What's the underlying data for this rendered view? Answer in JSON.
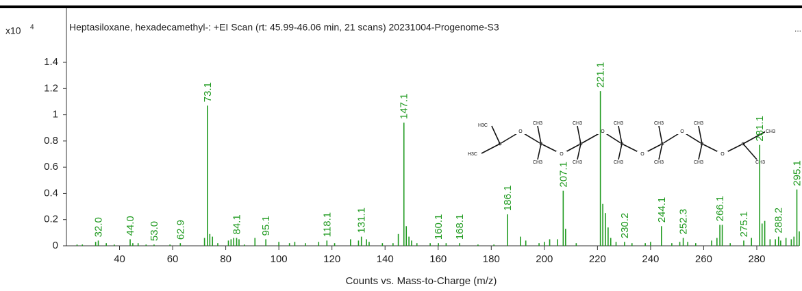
{
  "chart_data": {
    "type": "stem",
    "title": "Heptasiloxane, hexadecamethyl-: +EI Scan (rt: 45.99-46.06 min, 21 scans) 20231004-Progenome-S3",
    "x_label": "Counts vs. Mass-to-Charge (m/z)",
    "y_multiplier": "x10",
    "y_exponent": "4",
    "menu": "...",
    "color": "#1f9a1f",
    "xlim": [
      20,
      296
    ],
    "xticks": [
      40,
      60,
      80,
      100,
      120,
      140,
      160,
      180,
      200,
      220,
      240,
      260,
      280
    ],
    "ylim": [
      0,
      1.8
    ],
    "yticks": [
      0,
      0.2,
      0.4,
      0.6,
      0.8,
      1,
      1.2,
      1.4
    ],
    "x": [
      24,
      26,
      31,
      32,
      35,
      38,
      44,
      45,
      47,
      50,
      53,
      59,
      62.9,
      72,
      73.1,
      74,
      75,
      77,
      81,
      82,
      83,
      84.1,
      85,
      87,
      91,
      95.1,
      100,
      104,
      106,
      110,
      115,
      118.1,
      121,
      127,
      130,
      131.1,
      133,
      134,
      139,
      143,
      145,
      147.1,
      148,
      149,
      150,
      152,
      157,
      160.1,
      163,
      168.1,
      175,
      181,
      186.1,
      191,
      193,
      198,
      200,
      202,
      205,
      207.1,
      208,
      212,
      221.1,
      222,
      223,
      224,
      225,
      227,
      230.2,
      233,
      238,
      240,
      244.1,
      248,
      251,
      252.3,
      254,
      257,
      263,
      265,
      266.1,
      267,
      270,
      275.1,
      278,
      281.1,
      282,
      283,
      285,
      287,
      288.2,
      289,
      291,
      293,
      294,
      295.1,
      296
    ],
    "values": [
      0.01,
      0.01,
      0.03,
      0.04,
      0.02,
      0.01,
      0.05,
      0.02,
      0.02,
      0.01,
      0.01,
      0.01,
      0.02,
      0.06,
      1.07,
      0.09,
      0.07,
      0.02,
      0.04,
      0.05,
      0.06,
      0.06,
      0.05,
      0.01,
      0.06,
      0.05,
      0.03,
      0.02,
      0.03,
      0.02,
      0.03,
      0.04,
      0.02,
      0.05,
      0.04,
      0.07,
      0.05,
      0.03,
      0.02,
      0.02,
      0.09,
      0.94,
      0.15,
      0.07,
      0.04,
      0.02,
      0.02,
      0.02,
      0.02,
      0.02,
      0.01,
      0.01,
      0.24,
      0.07,
      0.04,
      0.02,
      0.03,
      0.05,
      0.05,
      0.42,
      0.13,
      0.02,
      1.18,
      0.32,
      0.25,
      0.14,
      0.06,
      0.03,
      0.03,
      0.02,
      0.02,
      0.03,
      0.15,
      0.02,
      0.03,
      0.06,
      0.03,
      0.02,
      0.04,
      0.06,
      0.16,
      0.16,
      0.02,
      0.04,
      0.06,
      0.77,
      0.17,
      0.19,
      0.05,
      0.05,
      0.07,
      0.04,
      0.06,
      0.05,
      0.07,
      0.43,
      0.11
    ],
    "x_labels": [
      null,
      null,
      null,
      "32.0",
      null,
      null,
      "44.0",
      null,
      null,
      null,
      "53.0",
      null,
      "62.9",
      null,
      "73.1",
      null,
      null,
      null,
      null,
      null,
      null,
      "84.1",
      null,
      null,
      null,
      "95.1",
      null,
      null,
      null,
      null,
      null,
      "118.1",
      null,
      null,
      null,
      "131.1",
      null,
      null,
      null,
      null,
      null,
      "147.1",
      null,
      null,
      null,
      null,
      null,
      "160.1",
      null,
      "168.1",
      null,
      null,
      "186.1",
      null,
      null,
      null,
      null,
      null,
      null,
      "207.1",
      null,
      null,
      "221.1",
      null,
      null,
      null,
      null,
      null,
      "230.2",
      null,
      null,
      null,
      "244.1",
      null,
      null,
      "252.3",
      null,
      null,
      null,
      null,
      "266.1",
      null,
      null,
      "275.1",
      null,
      "281.1",
      null,
      null,
      null,
      null,
      "288.2",
      null,
      null,
      null,
      null,
      "295.1",
      null
    ],
    "structure_labels": [
      "H3C",
      "H3C",
      "O",
      "O",
      "O",
      "O",
      "O",
      "O",
      "CH3",
      "CH3",
      "CH3",
      "CH3",
      "CH3",
      "CH3",
      "CH3",
      "CH3",
      "CH3",
      "CH3",
      "CH3",
      "CH3"
    ]
  }
}
